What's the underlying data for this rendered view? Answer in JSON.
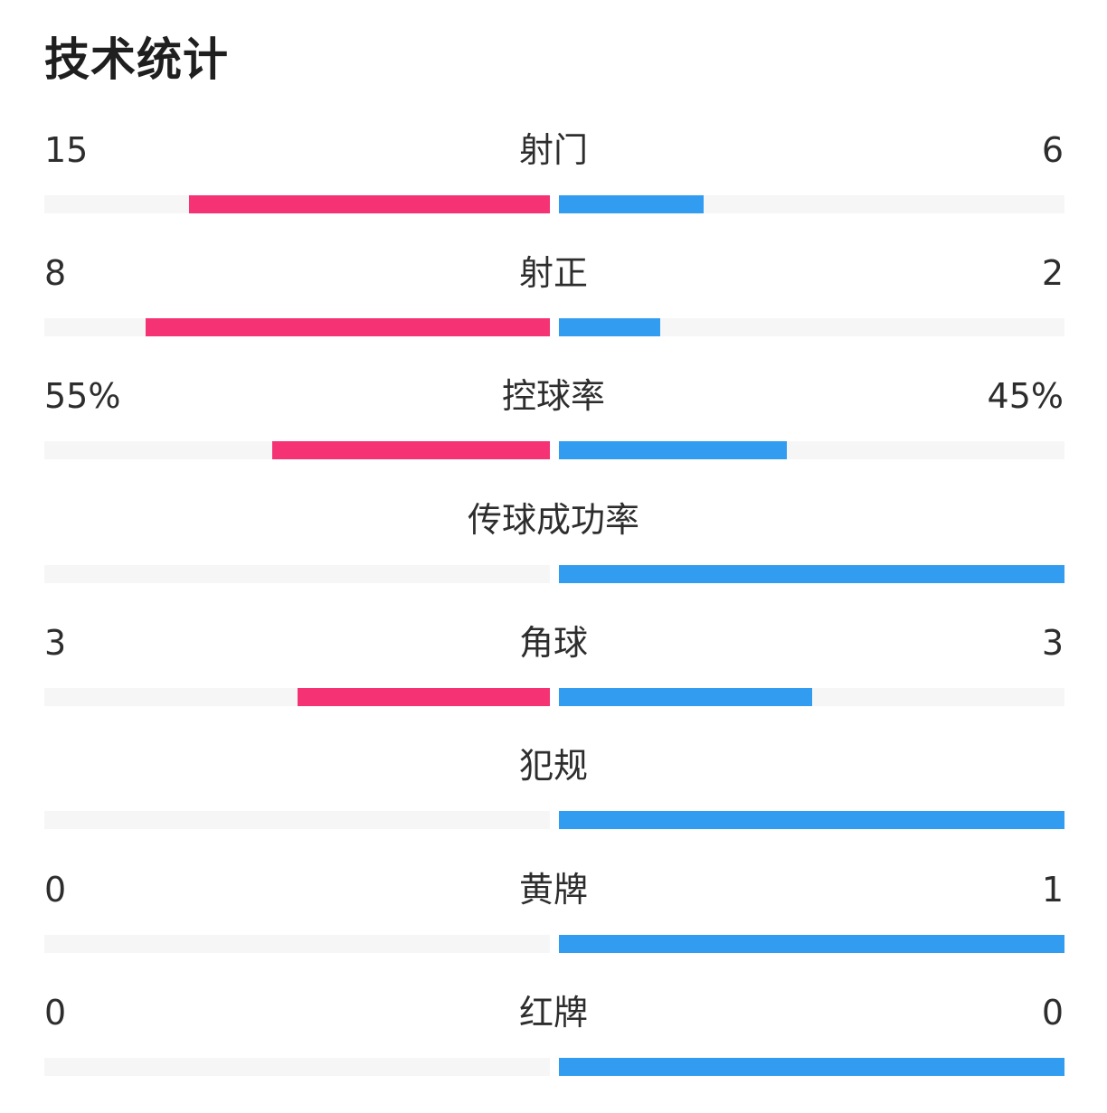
{
  "title": "技术统计",
  "colors": {
    "home": "#f43274",
    "away": "#329df0",
    "track": "#f6f6f6"
  },
  "stats": [
    {
      "label": "射门",
      "left": "15",
      "right": "6",
      "left_fill": 0.714,
      "right_fill": 0.286
    },
    {
      "label": "射正",
      "left": "8",
      "right": "2",
      "left_fill": 0.8,
      "right_fill": 0.2
    },
    {
      "label": "控球率",
      "left": "55%",
      "right": "45%",
      "left_fill": 0.55,
      "right_fill": 0.45
    },
    {
      "label": "传球成功率",
      "left": "",
      "right": "",
      "left_fill": 0,
      "right_fill": 1
    },
    {
      "label": "角球",
      "left": "3",
      "right": "3",
      "left_fill": 0.5,
      "right_fill": 0.5
    },
    {
      "label": "犯规",
      "left": "",
      "right": "",
      "left_fill": 0,
      "right_fill": 1
    },
    {
      "label": "黄牌",
      "left": "0",
      "right": "1",
      "left_fill": 0,
      "right_fill": 1
    },
    {
      "label": "红牌",
      "left": "0",
      "right": "0",
      "left_fill": 0,
      "right_fill": 1
    }
  ]
}
